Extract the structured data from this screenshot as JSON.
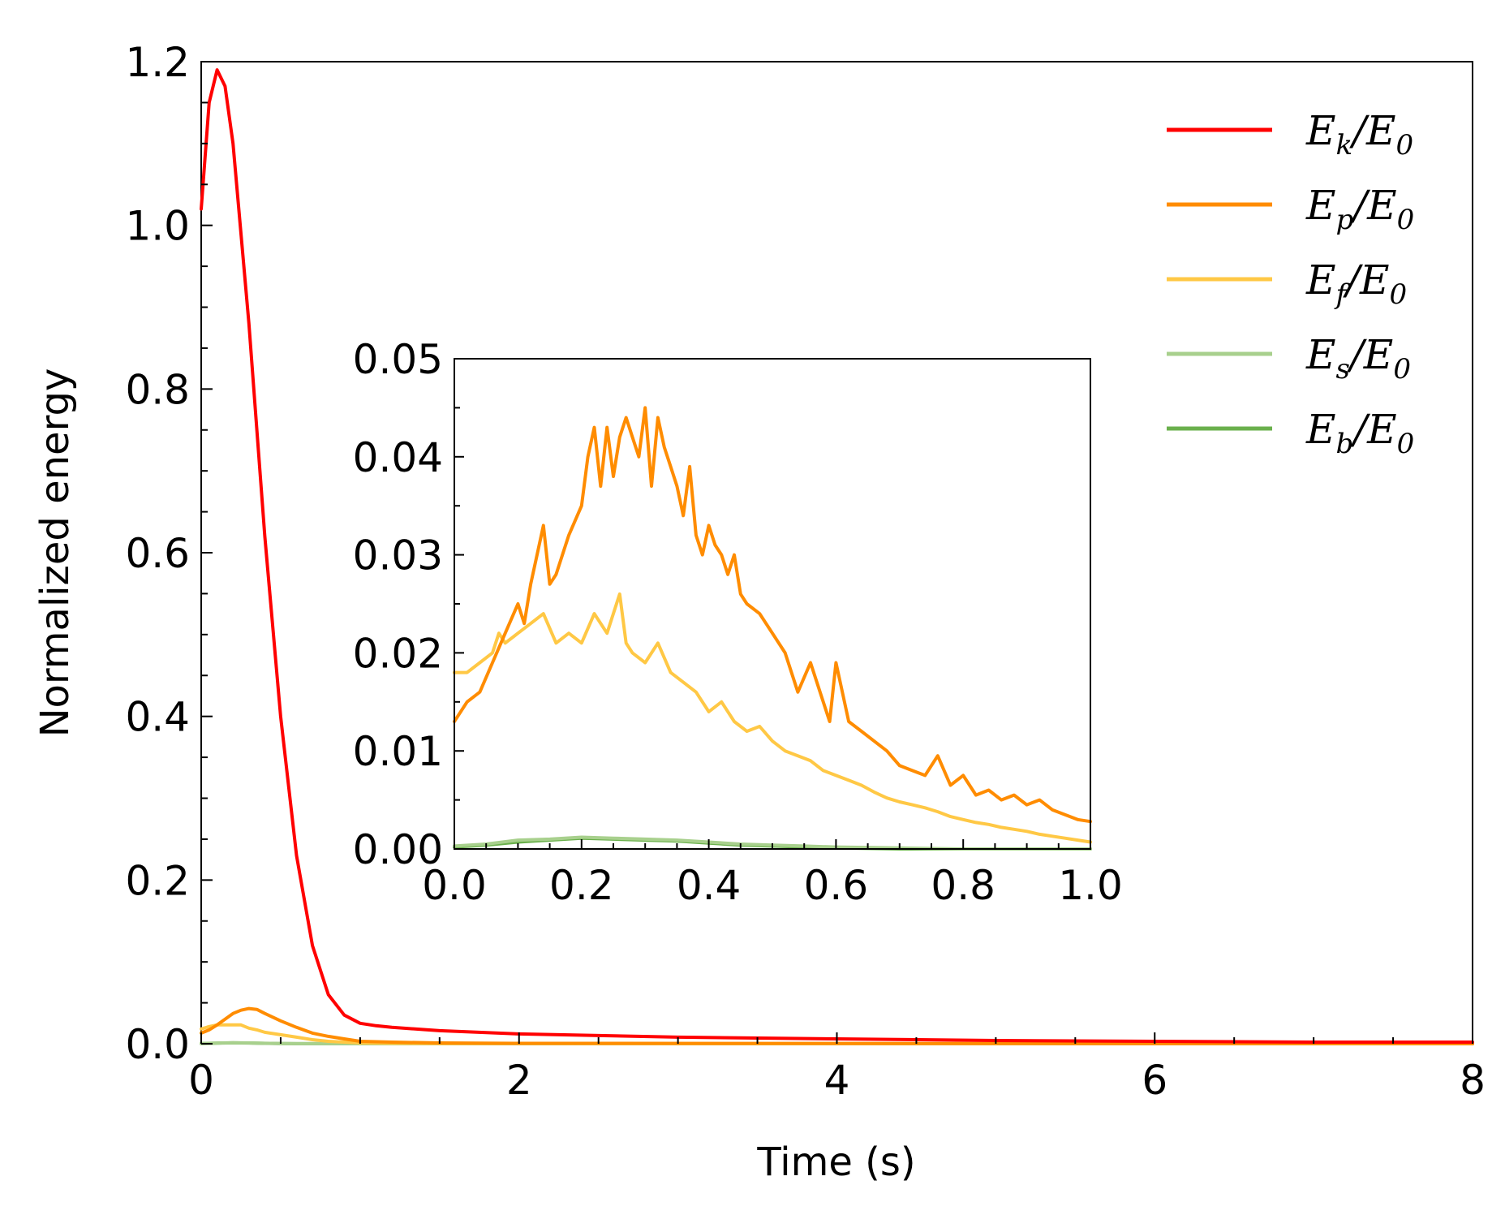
{
  "chart_data": [
    {
      "id": "main",
      "type": "line",
      "title": "",
      "xlabel": "Time (s)",
      "ylabel": "Normalized energy",
      "xlim": [
        0,
        8
      ],
      "ylim": [
        0,
        1.2
      ],
      "xticks": [
        0,
        2,
        4,
        6,
        8
      ],
      "xtick_labels": [
        "0",
        "2",
        "4",
        "6",
        "8"
      ],
      "yticks": [
        0,
        0.2,
        0.4,
        0.6,
        0.8,
        1.0,
        1.2
      ],
      "ytick_labels": [
        "0.0",
        "0.2",
        "0.4",
        "0.6",
        "0.8",
        "1.0",
        "1.2"
      ],
      "grid": false,
      "legend_position": "top-right",
      "series": [
        {
          "key": "Ek",
          "name": "E_k/E_0",
          "color": "#ff0000",
          "x": [
            0,
            0.05,
            0.1,
            0.15,
            0.2,
            0.3,
            0.4,
            0.5,
            0.6,
            0.7,
            0.8,
            0.9,
            1.0,
            1.1,
            1.2,
            1.5,
            2.0,
            3.0,
            4.0,
            5.0,
            6.0,
            7.0,
            8.0
          ],
          "values": [
            1.02,
            1.15,
            1.19,
            1.17,
            1.1,
            0.88,
            0.62,
            0.4,
            0.23,
            0.12,
            0.06,
            0.035,
            0.025,
            0.022,
            0.02,
            0.016,
            0.012,
            0.008,
            0.006,
            0.004,
            0.003,
            0.002,
            0.002
          ]
        },
        {
          "key": "Ep",
          "name": "E_p/E_0",
          "color": "#ff8c00",
          "x": [
            0,
            0.05,
            0.1,
            0.15,
            0.2,
            0.25,
            0.3,
            0.35,
            0.4,
            0.5,
            0.6,
            0.7,
            0.8,
            0.9,
            1.0,
            1.2,
            1.5,
            2.0,
            8.0
          ],
          "values": [
            0.013,
            0.017,
            0.023,
            0.03,
            0.037,
            0.041,
            0.043,
            0.042,
            0.037,
            0.028,
            0.02,
            0.013,
            0.009,
            0.006,
            0.003,
            0.002,
            0.001,
            0.0005,
            0.0
          ]
        },
        {
          "key": "Ef",
          "name": "E_f/E_0",
          "color": "#ffc845",
          "x": [
            0,
            0.05,
            0.1,
            0.15,
            0.2,
            0.25,
            0.3,
            0.35,
            0.4,
            0.5,
            0.6,
            0.7,
            0.8,
            0.9,
            1.0,
            1.2,
            1.5,
            2.0,
            8.0
          ],
          "values": [
            0.018,
            0.021,
            0.023,
            0.023,
            0.023,
            0.023,
            0.019,
            0.017,
            0.014,
            0.011,
            0.008,
            0.005,
            0.003,
            0.002,
            0.001,
            0.0005,
            0.0003,
            0.0002,
            0.0
          ]
        },
        {
          "key": "Es",
          "name": "E_s/E_0",
          "color": "#a8d08d",
          "x": [
            0,
            0.1,
            0.2,
            0.3,
            0.4,
            0.5,
            0.6,
            1.0,
            8.0
          ],
          "values": [
            0.0003,
            0.0009,
            0.0012,
            0.001,
            0.0006,
            0.0003,
            0.0001,
            0.0,
            0.0
          ]
        },
        {
          "key": "Eb",
          "name": "E_b/E_0",
          "color": "#6ab04c",
          "x": [
            0,
            0.1,
            0.2,
            0.3,
            0.4,
            0.5,
            0.6,
            1.0,
            8.0
          ],
          "values": [
            0.0002,
            0.0007,
            0.0011,
            0.0009,
            0.0005,
            0.0002,
            0.0001,
            0.0,
            0.0
          ]
        }
      ]
    },
    {
      "id": "inset",
      "type": "line",
      "title": "",
      "xlabel": "",
      "ylabel": "",
      "xlim": [
        0,
        1.0
      ],
      "ylim": [
        0,
        0.05
      ],
      "xticks": [
        0,
        0.2,
        0.4,
        0.6,
        0.8,
        1.0
      ],
      "xtick_labels": [
        "0.0",
        "0.2",
        "0.4",
        "0.6",
        "0.8",
        "1.0"
      ],
      "yticks": [
        0,
        0.01,
        0.02,
        0.03,
        0.04,
        0.05
      ],
      "ytick_labels": [
        "0.00",
        "0.01",
        "0.02",
        "0.03",
        "0.04",
        "0.05"
      ],
      "grid": false,
      "series": [
        {
          "key": "Ep",
          "color": "#ff8c00",
          "x": [
            0,
            0.02,
            0.04,
            0.06,
            0.08,
            0.1,
            0.11,
            0.12,
            0.14,
            0.15,
            0.16,
            0.18,
            0.2,
            0.21,
            0.22,
            0.23,
            0.24,
            0.25,
            0.26,
            0.27,
            0.28,
            0.29,
            0.3,
            0.31,
            0.32,
            0.33,
            0.34,
            0.35,
            0.36,
            0.37,
            0.38,
            0.39,
            0.4,
            0.41,
            0.42,
            0.43,
            0.44,
            0.45,
            0.46,
            0.48,
            0.5,
            0.52,
            0.54,
            0.56,
            0.58,
            0.59,
            0.6,
            0.62,
            0.64,
            0.66,
            0.68,
            0.7,
            0.72,
            0.74,
            0.76,
            0.78,
            0.8,
            0.82,
            0.84,
            0.86,
            0.88,
            0.9,
            0.92,
            0.94,
            0.96,
            0.98,
            1.0
          ],
          "values": [
            0.013,
            0.015,
            0.016,
            0.019,
            0.022,
            0.025,
            0.023,
            0.027,
            0.033,
            0.027,
            0.028,
            0.032,
            0.035,
            0.04,
            0.043,
            0.037,
            0.043,
            0.038,
            0.042,
            0.044,
            0.042,
            0.04,
            0.045,
            0.037,
            0.044,
            0.041,
            0.039,
            0.037,
            0.034,
            0.039,
            0.032,
            0.03,
            0.033,
            0.031,
            0.03,
            0.028,
            0.03,
            0.026,
            0.025,
            0.024,
            0.022,
            0.02,
            0.016,
            0.019,
            0.015,
            0.013,
            0.019,
            0.013,
            0.012,
            0.011,
            0.01,
            0.0085,
            0.008,
            0.0075,
            0.0095,
            0.0065,
            0.0075,
            0.0055,
            0.006,
            0.005,
            0.0055,
            0.0045,
            0.005,
            0.004,
            0.0035,
            0.003,
            0.0028
          ]
        },
        {
          "key": "Ef",
          "color": "#ffc845",
          "x": [
            0,
            0.02,
            0.04,
            0.06,
            0.07,
            0.08,
            0.1,
            0.12,
            0.14,
            0.16,
            0.18,
            0.2,
            0.22,
            0.24,
            0.26,
            0.27,
            0.28,
            0.3,
            0.32,
            0.34,
            0.36,
            0.38,
            0.4,
            0.42,
            0.44,
            0.46,
            0.48,
            0.5,
            0.52,
            0.54,
            0.56,
            0.58,
            0.6,
            0.62,
            0.64,
            0.66,
            0.68,
            0.7,
            0.72,
            0.74,
            0.76,
            0.78,
            0.8,
            0.82,
            0.84,
            0.86,
            0.88,
            0.9,
            0.92,
            0.94,
            0.96,
            0.98,
            1.0
          ],
          "values": [
            0.018,
            0.018,
            0.019,
            0.02,
            0.022,
            0.021,
            0.022,
            0.023,
            0.024,
            0.021,
            0.022,
            0.021,
            0.024,
            0.022,
            0.026,
            0.021,
            0.02,
            0.019,
            0.021,
            0.018,
            0.017,
            0.016,
            0.014,
            0.015,
            0.013,
            0.012,
            0.0125,
            0.011,
            0.01,
            0.0095,
            0.009,
            0.008,
            0.0075,
            0.007,
            0.0065,
            0.0058,
            0.0052,
            0.0048,
            0.0045,
            0.0042,
            0.0038,
            0.0033,
            0.003,
            0.0027,
            0.0025,
            0.0022,
            0.002,
            0.0018,
            0.0015,
            0.0013,
            0.0011,
            0.0009,
            0.0007
          ]
        },
        {
          "key": "Es",
          "color": "#a8d08d",
          "x": [
            0,
            0.05,
            0.1,
            0.15,
            0.2,
            0.25,
            0.3,
            0.35,
            0.4,
            0.45,
            0.5,
            0.55,
            0.6,
            0.7,
            0.8,
            1.0
          ],
          "values": [
            0.0003,
            0.0005,
            0.0009,
            0.001,
            0.0012,
            0.0011,
            0.001,
            0.0009,
            0.0007,
            0.0005,
            0.0004,
            0.0003,
            0.0002,
            0.0001,
            0.0,
            0.0
          ]
        },
        {
          "key": "Eb",
          "color": "#6ab04c",
          "x": [
            0,
            0.05,
            0.1,
            0.15,
            0.2,
            0.25,
            0.3,
            0.35,
            0.4,
            0.45,
            0.5,
            0.55,
            0.6,
            0.7,
            0.8,
            1.0
          ],
          "values": [
            0.0002,
            0.0004,
            0.0007,
            0.0009,
            0.0011,
            0.001,
            0.0009,
            0.0008,
            0.0006,
            0.0004,
            0.0003,
            0.0002,
            0.0001,
            0.0,
            0.0,
            0.0
          ]
        }
      ]
    }
  ],
  "legend": [
    {
      "key": "Ek",
      "main": "E",
      "sub": "k",
      "rest": "/E",
      "rest_sub": "0",
      "color": "#ff0000"
    },
    {
      "key": "Ep",
      "main": "E",
      "sub": "p",
      "rest": "/E",
      "rest_sub": "0",
      "color": "#ff8c00"
    },
    {
      "key": "Ef",
      "main": "E",
      "sub": "f",
      "rest": "/E",
      "rest_sub": "0",
      "color": "#ffc845"
    },
    {
      "key": "Es",
      "main": "E",
      "sub": "s",
      "rest": "/E",
      "rest_sub": "0",
      "color": "#a8d08d"
    },
    {
      "key": "Eb",
      "main": "E",
      "sub": "b",
      "rest": "/E",
      "rest_sub": "0",
      "color": "#6ab04c"
    }
  ]
}
